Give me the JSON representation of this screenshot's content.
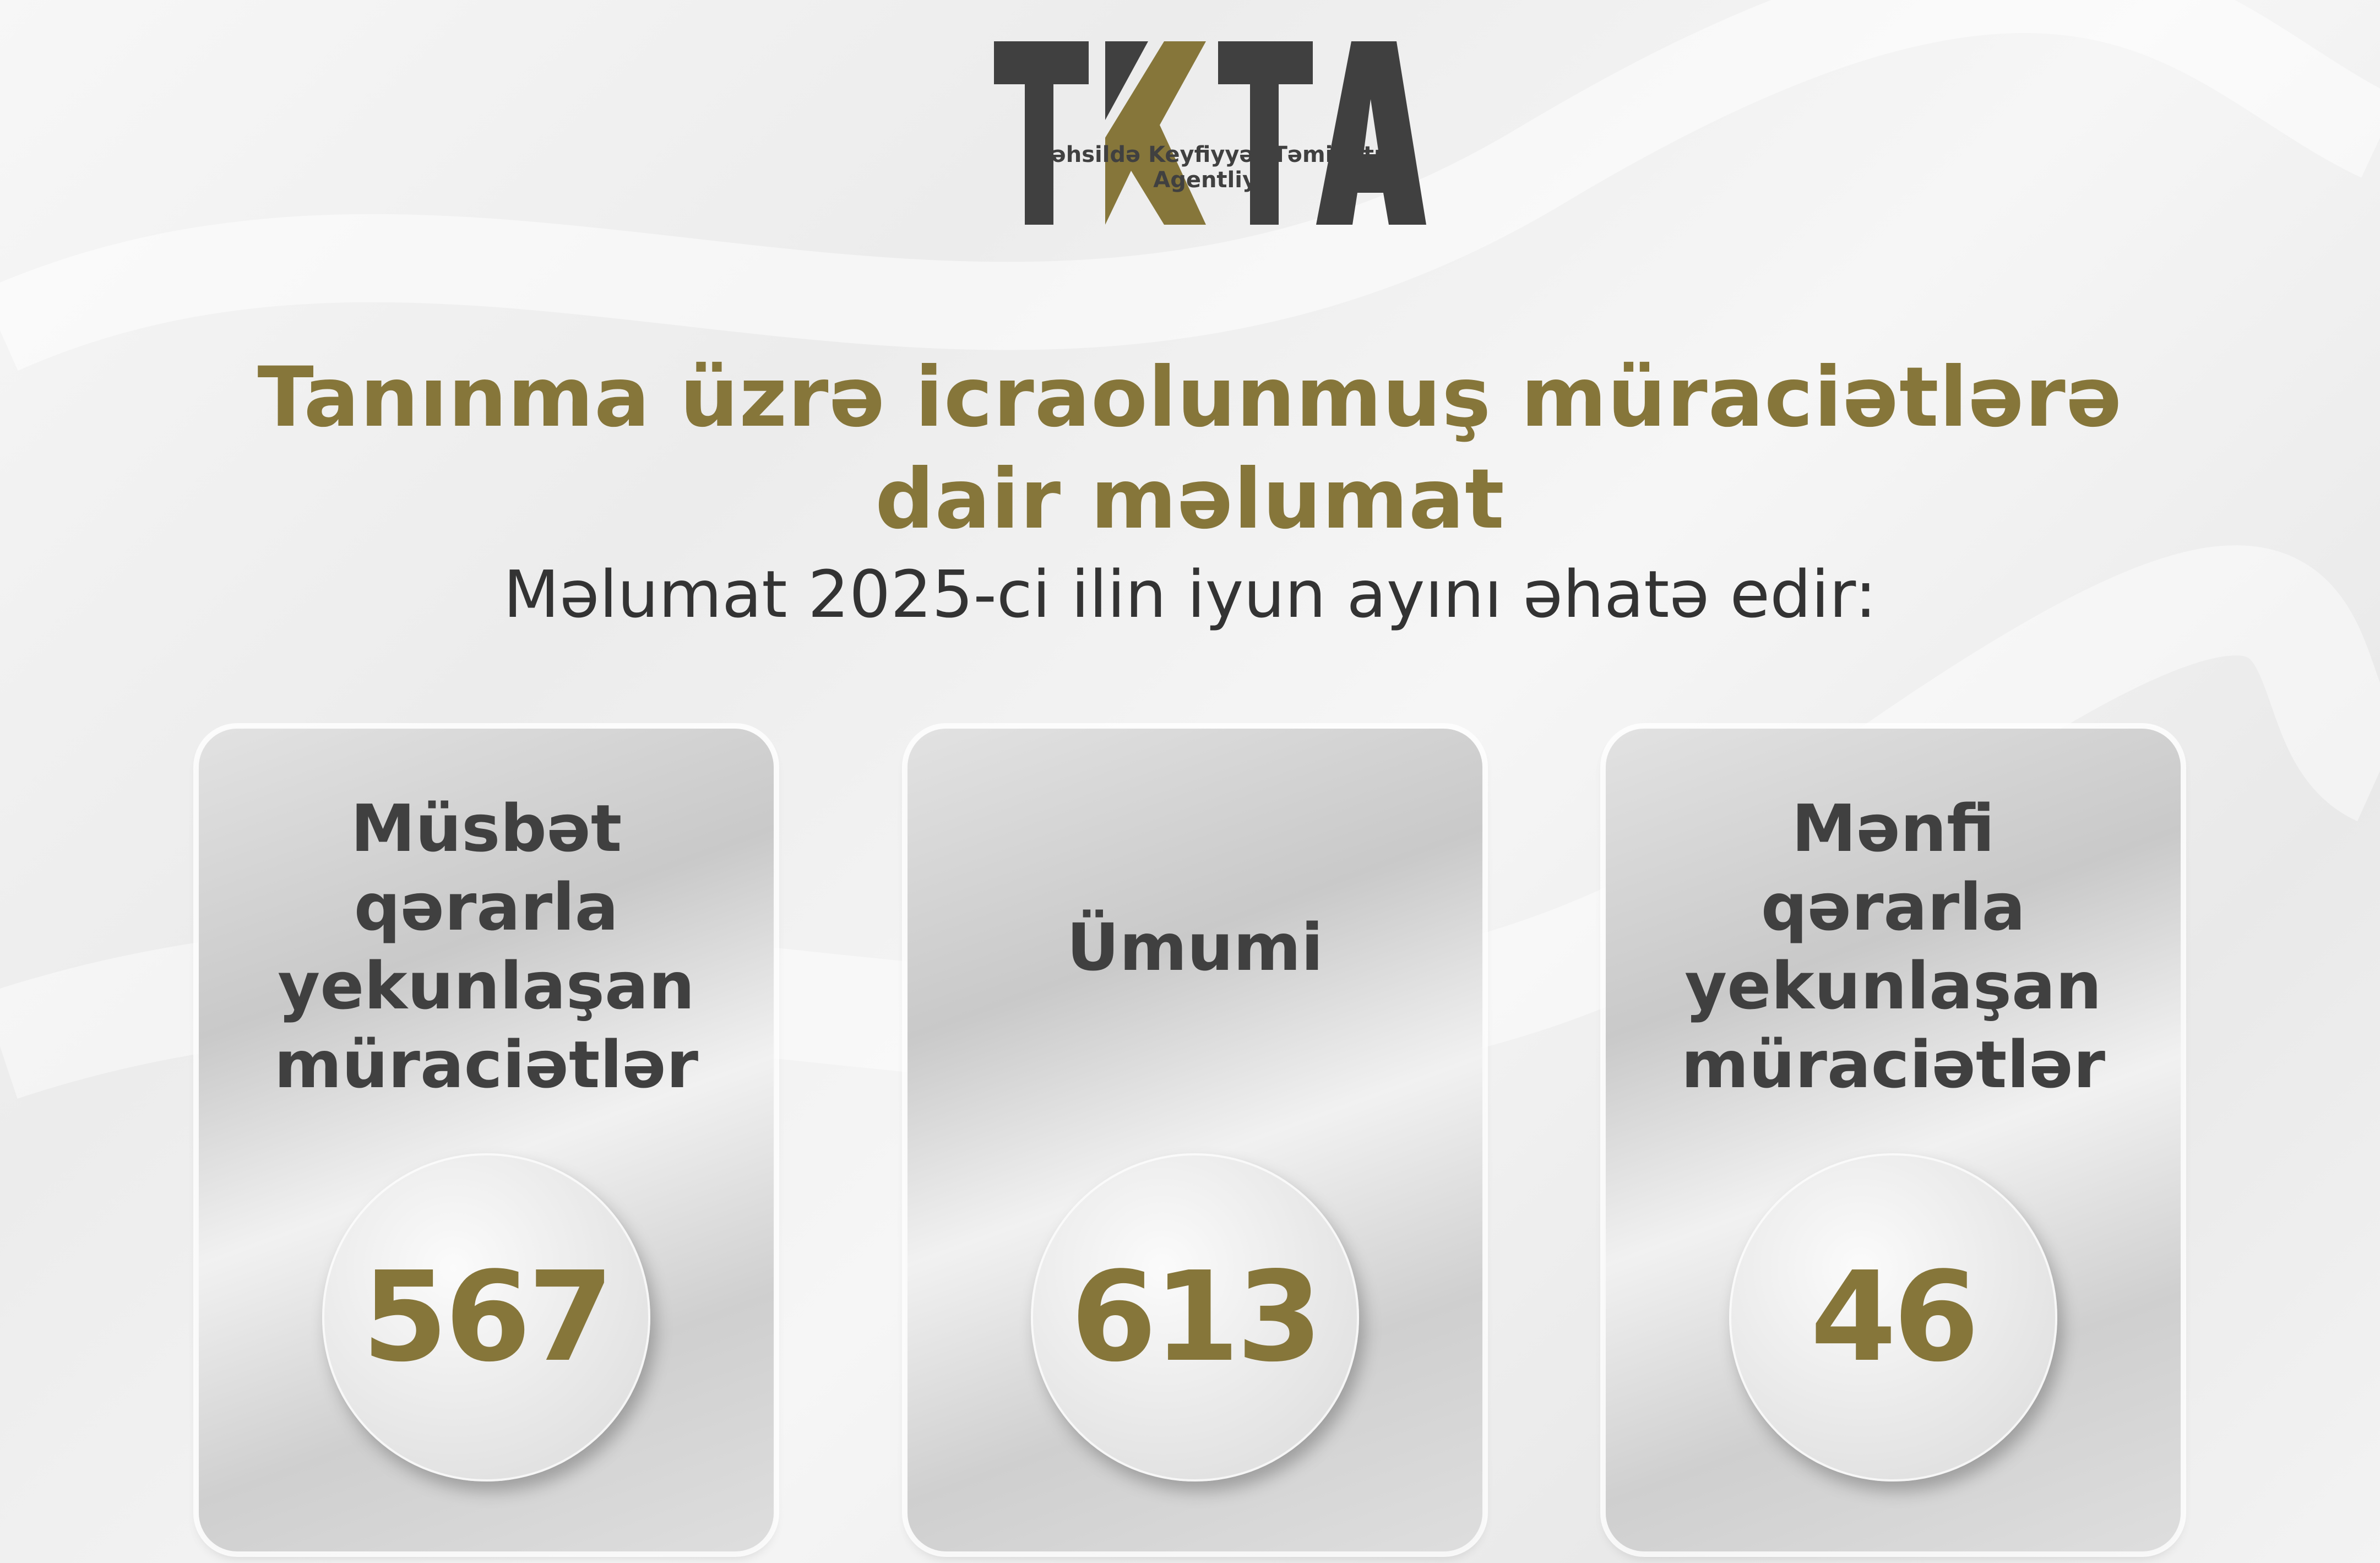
{
  "logo": {
    "text": "TKTA",
    "subtitle": "Təhsildə Keyfiyyət Təminatı Agentliyi",
    "colors": {
      "dark": "#404040",
      "gold": "#86763a"
    }
  },
  "header": {
    "title_line1": "Tanınma üzrə icraolunmuş müraciətlərə",
    "title_line2": "dair məlumat",
    "subtitle": "Məlumat 2025-ci ilin iyun ayını əhatə edir:"
  },
  "cards": [
    {
      "title_lines": [
        "Müsbət",
        "qərarla",
        "yekunlaşan",
        "müraciətlər"
      ],
      "value": "567"
    },
    {
      "title_lines": [
        "Ümumi"
      ],
      "value": "613"
    },
    {
      "title_lines": [
        "Mənfi",
        "qərarla",
        "yekunlaşan",
        "müraciətlər"
      ],
      "value": "46"
    }
  ]
}
